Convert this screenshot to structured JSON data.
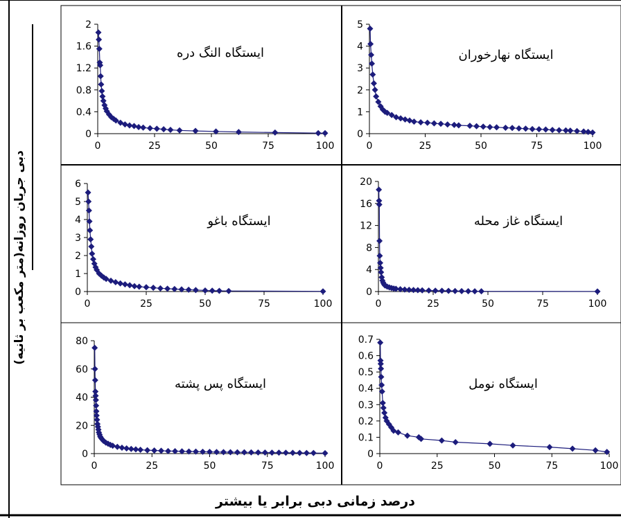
{
  "figure": {
    "ylabel": "دبی جریان روزانه(متر مکعب بر ثانیه)",
    "xlabel": "درصد زمانی دبی برابر یا بیشتر",
    "series_color": "#1c1c7c"
  },
  "chart_data": [
    {
      "type": "line",
      "title": "ایستگاه النگ دره",
      "xlim": [
        0,
        100
      ],
      "ylim": [
        0,
        2
      ],
      "xticks": [
        "0",
        "25",
        "50",
        "75",
        "100"
      ],
      "yticks": [
        "0",
        "0.4",
        "0.8",
        "1.2",
        "1.6",
        "2"
      ],
      "x": [
        0.3,
        0.5,
        0.7,
        0.9,
        1.1,
        1.3,
        1.5,
        1.8,
        2.1,
        2.5,
        3,
        3.5,
        4,
        5,
        6,
        7,
        8,
        10,
        12,
        14,
        16,
        18,
        20,
        23,
        26,
        29,
        32,
        36,
        43,
        52,
        62,
        78,
        97,
        100
      ],
      "y": [
        1.85,
        1.72,
        1.55,
        1.3,
        1.25,
        1.05,
        0.9,
        0.78,
        0.68,
        0.6,
        0.52,
        0.46,
        0.41,
        0.35,
        0.3,
        0.27,
        0.24,
        0.2,
        0.17,
        0.15,
        0.14,
        0.12,
        0.11,
        0.1,
        0.09,
        0.08,
        0.07,
        0.06,
        0.05,
        0.04,
        0.03,
        0.02,
        0.01,
        0.01
      ]
    },
    {
      "type": "line",
      "title": "ایستگاه نهارخوران",
      "xlim": [
        0,
        100
      ],
      "ylim": [
        0,
        5
      ],
      "xticks": [
        "0",
        "25",
        "50",
        "75",
        "100"
      ],
      "yticks": [
        "0",
        "1",
        "2",
        "3",
        "4",
        "5"
      ],
      "x": [
        0.3,
        0.5,
        0.8,
        1.1,
        1.5,
        2,
        2.5,
        3,
        4,
        5,
        6,
        7,
        8,
        10,
        12,
        14,
        16,
        18,
        20,
        23,
        26,
        29,
        32,
        35,
        38,
        40,
        45,
        48,
        51,
        54,
        57,
        61,
        64,
        67,
        70,
        73,
        76,
        79,
        82,
        85,
        88,
        90,
        93,
        96,
        98,
        100
      ],
      "y": [
        4.8,
        4.1,
        3.6,
        3.2,
        2.7,
        2.3,
        2.0,
        1.7,
        1.45,
        1.25,
        1.1,
        1.0,
        0.95,
        0.85,
        0.75,
        0.7,
        0.65,
        0.6,
        0.55,
        0.52,
        0.5,
        0.47,
        0.45,
        0.42,
        0.4,
        0.38,
        0.36,
        0.34,
        0.32,
        0.3,
        0.29,
        0.27,
        0.26,
        0.24,
        0.23,
        0.21,
        0.2,
        0.19,
        0.17,
        0.16,
        0.15,
        0.14,
        0.12,
        0.1,
        0.08,
        0.05
      ]
    },
    {
      "type": "line",
      "title": "ایستگاه باغو",
      "xlim": [
        0,
        100
      ],
      "ylim": [
        0,
        6
      ],
      "xticks": [
        "0",
        "25",
        "50",
        "75",
        "100"
      ],
      "yticks": [
        "0",
        "1",
        "2",
        "3",
        "4",
        "5",
        "6"
      ],
      "x": [
        0.3,
        0.5,
        0.7,
        0.9,
        1.1,
        1.4,
        1.7,
        2,
        2.5,
        3,
        3.5,
        4,
        5,
        6,
        7,
        8,
        10,
        12,
        14,
        16,
        18,
        20,
        22,
        25,
        28,
        31,
        34,
        37,
        40,
        43,
        46,
        50,
        53,
        56,
        60,
        100
      ],
      "y": [
        5.5,
        5.0,
        4.5,
        3.9,
        3.4,
        2.9,
        2.5,
        2.1,
        1.8,
        1.55,
        1.35,
        1.2,
        1.0,
        0.88,
        0.78,
        0.7,
        0.6,
        0.52,
        0.45,
        0.4,
        0.35,
        0.3,
        0.27,
        0.24,
        0.21,
        0.18,
        0.16,
        0.14,
        0.12,
        0.1,
        0.08,
        0.06,
        0.05,
        0.04,
        0.03,
        0.01
      ]
    },
    {
      "type": "line",
      "title": "ایستگاه غاز محله",
      "xlim": [
        0,
        100
      ],
      "ylim": [
        0,
        20
      ],
      "xticks": [
        "0",
        "25",
        "50",
        "75",
        "100"
      ],
      "yticks": [
        "0",
        "4",
        "8",
        "12",
        "16",
        "20"
      ],
      "x": [
        0.2,
        0.3,
        0.4,
        0.5,
        0.6,
        0.8,
        1,
        1.2,
        1.5,
        1.8,
        2.2,
        2.6,
        3,
        4,
        5,
        6,
        7,
        8,
        10,
        12,
        14,
        16,
        18,
        20,
        23,
        26,
        29,
        32,
        35,
        38,
        41,
        44,
        47,
        100
      ],
      "y": [
        18.5,
        16.5,
        15.8,
        9.2,
        6.5,
        5.2,
        4.3,
        3.5,
        2.6,
        2.0,
        1.6,
        1.3,
        1.1,
        0.9,
        0.75,
        0.65,
        0.55,
        0.5,
        0.42,
        0.36,
        0.32,
        0.28,
        0.25,
        0.22,
        0.19,
        0.16,
        0.14,
        0.12,
        0.1,
        0.08,
        0.06,
        0.05,
        0.04,
        0.02
      ]
    },
    {
      "type": "line",
      "title": "ایستگاه پس پشته",
      "xlim": [
        0,
        100
      ],
      "ylim": [
        0,
        80
      ],
      "xticks": [
        "0",
        "25",
        "50",
        "75",
        "100"
      ],
      "yticks": [
        "0",
        "20",
        "40",
        "60",
        "80"
      ],
      "x": [
        0.2,
        0.3,
        0.4,
        0.5,
        0.6,
        0.7,
        0.8,
        0.9,
        1,
        1.2,
        1.4,
        1.6,
        1.8,
        2,
        2.3,
        2.6,
        3,
        3.5,
        4,
        5,
        6,
        7,
        8,
        10,
        12,
        14,
        16,
        18,
        20,
        23,
        26,
        29,
        32,
        35,
        38,
        41,
        44,
        47,
        50,
        53,
        56,
        59,
        62,
        65,
        68,
        71,
        74,
        77,
        80,
        83,
        86,
        89,
        92,
        95,
        100
      ],
      "y": [
        75,
        60,
        52,
        44,
        41,
        38,
        34,
        30,
        27,
        24,
        21,
        19,
        17,
        15,
        13.5,
        12,
        11,
        10,
        9,
        7.8,
        7,
        6.2,
        5.6,
        4.8,
        4.2,
        3.7,
        3.3,
        3,
        2.7,
        2.4,
        2.2,
        2,
        1.8,
        1.7,
        1.6,
        1.5,
        1.4,
        1.3,
        1.2,
        1.1,
        1.05,
        1,
        0.95,
        0.9,
        0.85,
        0.8,
        0.75,
        0.7,
        0.65,
        0.6,
        0.55,
        0.5,
        0.45,
        0.4,
        0.3
      ]
    },
    {
      "type": "line",
      "title": "ایستگاه نومل",
      "xlim": [
        0,
        100
      ],
      "ylim": [
        0,
        0.7
      ],
      "xticks": [
        "0",
        "25",
        "50",
        "75",
        "100"
      ],
      "yticks": [
        "0",
        "0.1",
        "0.2",
        "0.3",
        "0.4",
        "0.5",
        "0.6",
        "0.7"
      ],
      "x": [
        0.2,
        0.3,
        0.4,
        0.5,
        0.6,
        0.8,
        1,
        1.3,
        1.6,
        2,
        2.5,
        3,
        4,
        5,
        6,
        8,
        12,
        17,
        18,
        27,
        33,
        48,
        58,
        74,
        84,
        94,
        99
      ],
      "y": [
        0.68,
        0.57,
        0.55,
        0.52,
        0.47,
        0.42,
        0.38,
        0.31,
        0.28,
        0.25,
        0.22,
        0.2,
        0.18,
        0.16,
        0.14,
        0.13,
        0.11,
        0.1,
        0.09,
        0.08,
        0.07,
        0.06,
        0.05,
        0.04,
        0.03,
        0.02,
        0.01
      ]
    }
  ]
}
